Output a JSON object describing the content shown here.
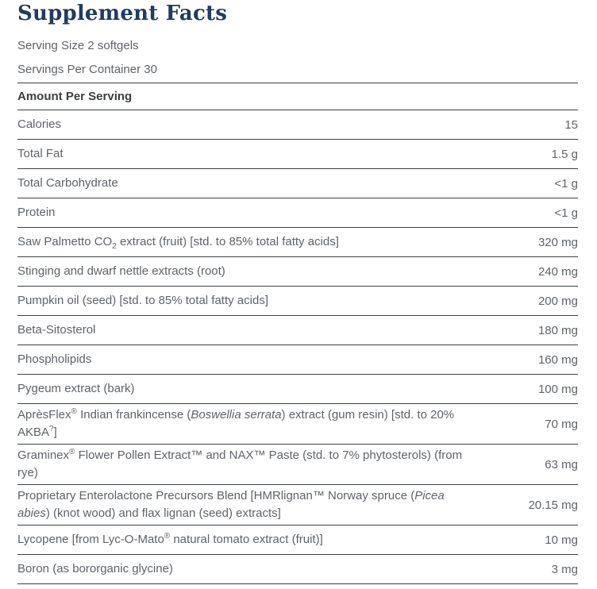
{
  "title": "Supplement Facts",
  "serving": {
    "size": "Serving Size 2 softgels",
    "per_container": "Servings Per Container 30"
  },
  "table": {
    "header": "Amount Per Serving",
    "rows": [
      {
        "name": [
          {
            "t": "Calories"
          }
        ],
        "amount": "15"
      },
      {
        "name": [
          {
            "t": "Total Fat"
          }
        ],
        "amount": "1.5 g"
      },
      {
        "name": [
          {
            "t": "Total Carbohydrate"
          }
        ],
        "amount": "<1 g"
      },
      {
        "name": [
          {
            "t": "Protein"
          }
        ],
        "amount": "<1 g"
      },
      {
        "name": [
          {
            "t": "Saw Palmetto CO"
          },
          {
            "t": "2",
            "s": "sub"
          },
          {
            "t": " extract (fruit) [std. to 85% total fatty acids]"
          }
        ],
        "amount": "320 mg"
      },
      {
        "name": [
          {
            "t": "Stinging and dwarf nettle extracts (root)"
          }
        ],
        "amount": "240 mg"
      },
      {
        "name": [
          {
            "t": "Pumpkin oil (seed) [std. to 85% total fatty acids]"
          }
        ],
        "amount": "200 mg"
      },
      {
        "name": [
          {
            "t": "Beta-Sitosterol"
          }
        ],
        "amount": "180 mg"
      },
      {
        "name": [
          {
            "t": "Phospholipids"
          }
        ],
        "amount": "160 mg"
      },
      {
        "name": [
          {
            "t": "Pygeum extract (bark)"
          }
        ],
        "amount": "100 mg"
      },
      {
        "name": [
          {
            "t": "AprèsFlex"
          },
          {
            "t": "®",
            "s": "sup"
          },
          {
            "t": " Indian frankincense ("
          },
          {
            "t": "Boswellia serrata",
            "s": "i"
          },
          {
            "t": ") extract (gum resin) [std. to 20% AKBA"
          },
          {
            "t": "?",
            "s": "sup"
          },
          {
            "t": "]"
          }
        ],
        "amount": "70 mg"
      },
      {
        "name": [
          {
            "t": "Graminex"
          },
          {
            "t": "®",
            "s": "sup"
          },
          {
            "t": " Flower Pollen Extract™ and NAX™ Paste (std. to 7% phytosterols) (from rye)"
          }
        ],
        "amount": "63 mg"
      },
      {
        "name": [
          {
            "t": "Proprietary Enterolactone Precursors Blend [HMRlignan™ Norway spruce ("
          },
          {
            "t": "Picea abies",
            "s": "i"
          },
          {
            "t": ") (knot wood) and flax lignan (seed) extracts]"
          }
        ],
        "amount": "20.15 mg"
      },
      {
        "name": [
          {
            "t": "Lycopene [from Lyc-O-Mato"
          },
          {
            "t": "®",
            "s": "sup"
          },
          {
            "t": " natural tomato extract (fruit)]"
          }
        ],
        "amount": "10 mg"
      },
      {
        "name": [
          {
            "t": "Boron (as bororganic glycine)"
          }
        ],
        "amount": "3 mg"
      }
    ]
  },
  "colors": {
    "title": "#1e3d5f",
    "body_text": "#5f6368",
    "header_text": "#3c4043",
    "rule": "#3c4043"
  }
}
